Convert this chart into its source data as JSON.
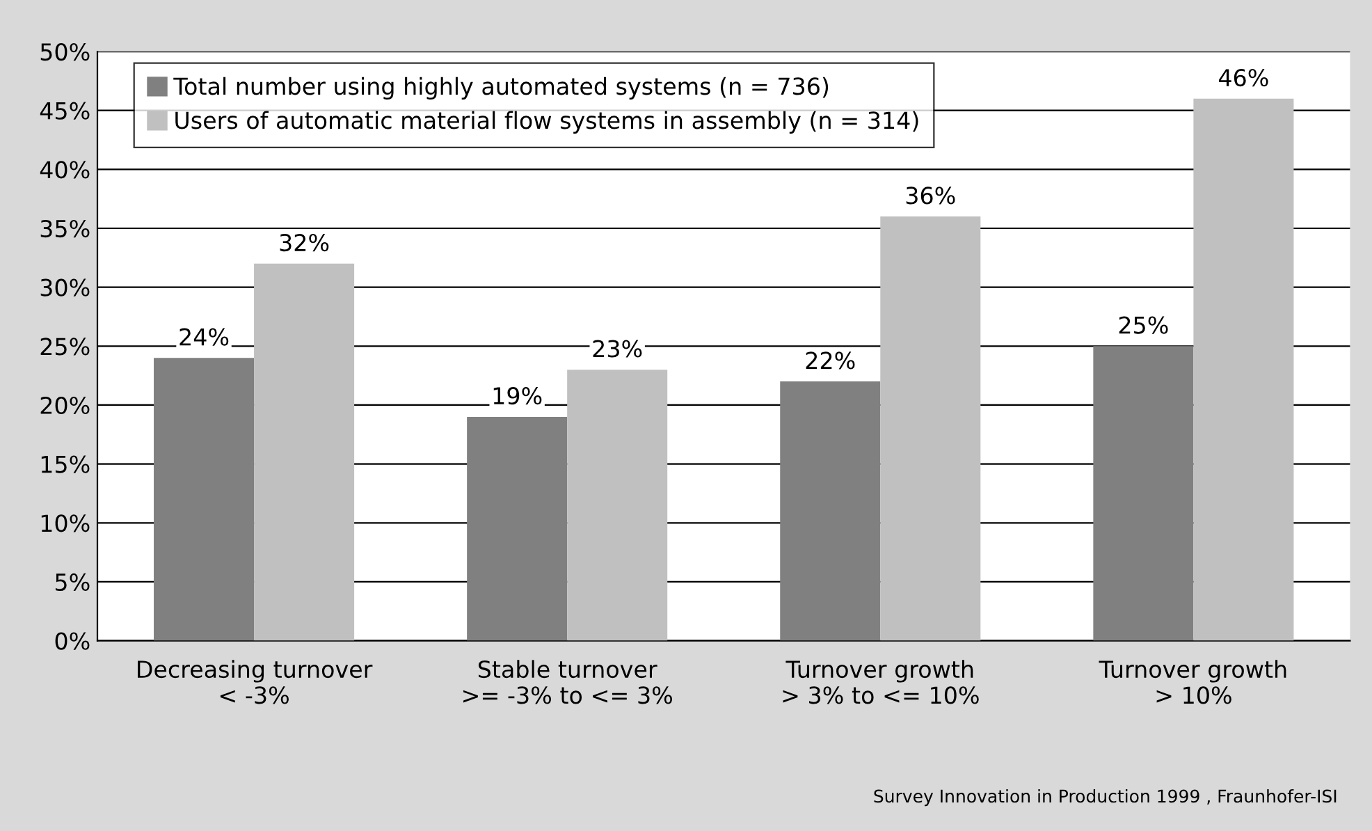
{
  "chart_data": {
    "type": "bar",
    "categories": [
      "Decreasing turnover\n< -3%",
      "Stable turnover\n>= -3% to <= 3%",
      "Turnover growth\n> 3% to <= 10%",
      "Turnover growth\n> 10%"
    ],
    "series": [
      {
        "name": "Total number using highly automated systems (n = 736)",
        "color": "#808080",
        "values": [
          24,
          19,
          22,
          25
        ]
      },
      {
        "name": "Users of automatic material flow systems in assembly (n = 314)",
        "color": "#c0c0c0",
        "values": [
          32,
          23,
          36,
          46
        ]
      }
    ],
    "value_labels": [
      [
        "24%",
        "19%",
        "22%",
        "25%"
      ],
      [
        "32%",
        "23%",
        "36%",
        "46%"
      ]
    ],
    "ylim": [
      0,
      50
    ],
    "yticks": [
      {
        "value": 0,
        "label": "0%"
      },
      {
        "value": 5,
        "label": "5%"
      },
      {
        "value": 10,
        "label": "10%"
      },
      {
        "value": 15,
        "label": "15%"
      },
      {
        "value": 20,
        "label": "20%"
      },
      {
        "value": 25,
        "label": "25%"
      },
      {
        "value": 30,
        "label": "30%"
      },
      {
        "value": 35,
        "label": "35%"
      },
      {
        "value": 40,
        "label": "40%"
      },
      {
        "value": 45,
        "label": "45%"
      },
      {
        "value": 50,
        "label": "50%"
      }
    ],
    "grid": "y",
    "legend": "top left",
    "annotations": [
      "Survey Innovation in Production 1999 , Fraunhofer-ISI"
    ]
  }
}
